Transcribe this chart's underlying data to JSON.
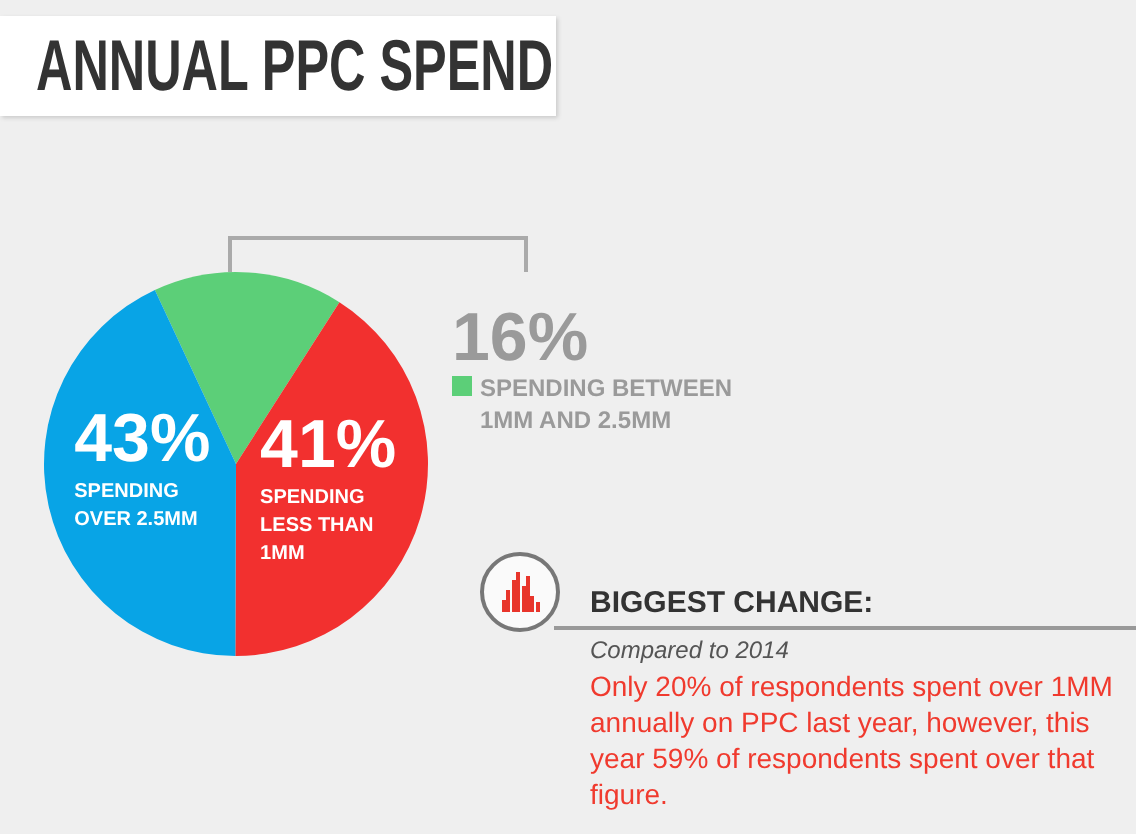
{
  "chart_data": {
    "type": "pie",
    "title": "ANNUAL PPC SPEND",
    "categories": [
      "SPENDING BETWEEN 1MM AND 2.5MM",
      "SPENDING LESS THAN 1MM",
      "SPENDING OVER 2.5MM"
    ],
    "values": [
      16,
      41,
      43
    ],
    "value_labels": [
      "16%",
      "41%",
      "43%"
    ],
    "colors": [
      "#5ccf78",
      "#f2302f",
      "#08a4e6"
    ],
    "legend": "right",
    "annotations": [
      "BIGGEST CHANGE:",
      "Compared to 2014",
      "Only 20% of respondents spent over 1MM annually on PPC last year, however, this year 59% of respondents spent over that figure."
    ]
  }
}
